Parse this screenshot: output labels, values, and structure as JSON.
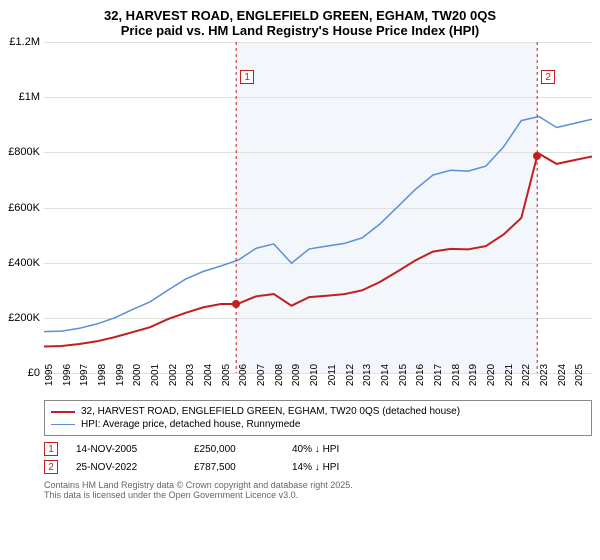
{
  "header": {
    "title": "32, HARVEST ROAD, ENGLEFIELD GREEN, EGHAM, TW20 0QS",
    "subtitle": "Price paid vs. HM Land Registry's House Price Index (HPI)"
  },
  "chart": {
    "type": "line",
    "background_color": "#ffffff",
    "grid_color": "#e0e0e0",
    "axis_color": "#888888",
    "y": {
      "min": 0,
      "max": 1200000,
      "step": 200000,
      "ticks": [
        {
          "v": 0,
          "label": "£0"
        },
        {
          "v": 200000,
          "label": "£200K"
        },
        {
          "v": 400000,
          "label": "£400K"
        },
        {
          "v": 600000,
          "label": "£600K"
        },
        {
          "v": 800000,
          "label": "£800K"
        },
        {
          "v": 1000000,
          "label": "£1M"
        },
        {
          "v": 1200000,
          "label": "£1.2M"
        }
      ],
      "label_fontsize": 11
    },
    "x": {
      "min": 1995,
      "max": 2026,
      "ticks": [
        1995,
        1996,
        1997,
        1998,
        1999,
        2000,
        2001,
        2002,
        2003,
        2004,
        2005,
        2006,
        2007,
        2008,
        2009,
        2010,
        2011,
        2012,
        2013,
        2014,
        2015,
        2016,
        2017,
        2018,
        2019,
        2020,
        2021,
        2022,
        2023,
        2024,
        2025
      ],
      "label_fontsize": 10
    },
    "highlight_band": {
      "from_year": 2005.87,
      "to_year": 2022.9,
      "fill": "#f3f6fb"
    },
    "series_hpi": {
      "color": "#5b8fd6",
      "width": 1.5,
      "label": "HPI: Average price, detached house, Runnymede",
      "points": [
        [
          1995,
          150000
        ],
        [
          1996,
          152000
        ],
        [
          1997,
          162000
        ],
        [
          1998,
          178000
        ],
        [
          1999,
          200000
        ],
        [
          2000,
          230000
        ],
        [
          2001,
          258000
        ],
        [
          2002,
          300000
        ],
        [
          2003,
          340000
        ],
        [
          2004,
          368000
        ],
        [
          2005,
          388000
        ],
        [
          2006,
          410000
        ],
        [
          2007,
          452000
        ],
        [
          2008,
          468000
        ],
        [
          2009,
          398000
        ],
        [
          2010,
          450000
        ],
        [
          2011,
          460000
        ],
        [
          2012,
          470000
        ],
        [
          2013,
          490000
        ],
        [
          2014,
          540000
        ],
        [
          2015,
          602000
        ],
        [
          2016,
          665000
        ],
        [
          2017,
          718000
        ],
        [
          2018,
          735000
        ],
        [
          2019,
          732000
        ],
        [
          2020,
          750000
        ],
        [
          2021,
          820000
        ],
        [
          2022,
          915000
        ],
        [
          2023,
          930000
        ],
        [
          2024,
          890000
        ],
        [
          2025,
          905000
        ],
        [
          2026,
          920000
        ]
      ]
    },
    "series_price": {
      "color": "#c02020",
      "width": 2,
      "label": "32, HARVEST ROAD, ENGLEFIELD GREEN, EGHAM, TW20 0QS (detached house)",
      "points": [
        [
          1995,
          96000
        ],
        [
          1996,
          98000
        ],
        [
          1997,
          105000
        ],
        [
          1998,
          115000
        ],
        [
          1999,
          130000
        ],
        [
          2000,
          148000
        ],
        [
          2001,
          166000
        ],
        [
          2002,
          195000
        ],
        [
          2003,
          218000
        ],
        [
          2004,
          238000
        ],
        [
          2005,
          250000
        ],
        [
          2005.87,
          250000
        ],
        [
          2006,
          252000
        ],
        [
          2007,
          278000
        ],
        [
          2008,
          286000
        ],
        [
          2009,
          244000
        ],
        [
          2010,
          275000
        ],
        [
          2011,
          280000
        ],
        [
          2012,
          286000
        ],
        [
          2013,
          300000
        ],
        [
          2014,
          330000
        ],
        [
          2015,
          368000
        ],
        [
          2016,
          408000
        ],
        [
          2017,
          440000
        ],
        [
          2018,
          450000
        ],
        [
          2019,
          448000
        ],
        [
          2020,
          460000
        ],
        [
          2021,
          502000
        ],
        [
          2022,
          562000
        ],
        [
          2022.9,
          787500
        ],
        [
          2023,
          795000
        ],
        [
          2024,
          758000
        ],
        [
          2025,
          772000
        ],
        [
          2026,
          785000
        ]
      ]
    },
    "sale_markers": [
      {
        "n": "1",
        "year": 2005.87,
        "price": 250000,
        "line_color": "#c02020",
        "dash": "3,3"
      },
      {
        "n": "2",
        "year": 2022.9,
        "price": 787500,
        "line_color": "#c02020",
        "dash": "3,3"
      }
    ]
  },
  "legend": {
    "items": [
      {
        "color": "#c02020",
        "width": 2,
        "label": "32, HARVEST ROAD, ENGLEFIELD GREEN, EGHAM, TW20 0QS (detached house)"
      },
      {
        "color": "#5b8fd6",
        "width": 1.5,
        "label": "HPI: Average price, detached house, Runnymede"
      }
    ]
  },
  "sales": [
    {
      "n": "1",
      "date": "14-NOV-2005",
      "price": "£250,000",
      "pct": "40% ↓ HPI"
    },
    {
      "n": "2",
      "date": "25-NOV-2022",
      "price": "£787,500",
      "pct": "14% ↓ HPI"
    }
  ],
  "footnote": {
    "line1": "Contains HM Land Registry data © Crown copyright and database right 2025.",
    "line2": "This data is licensed under the Open Government Licence v3.0."
  }
}
